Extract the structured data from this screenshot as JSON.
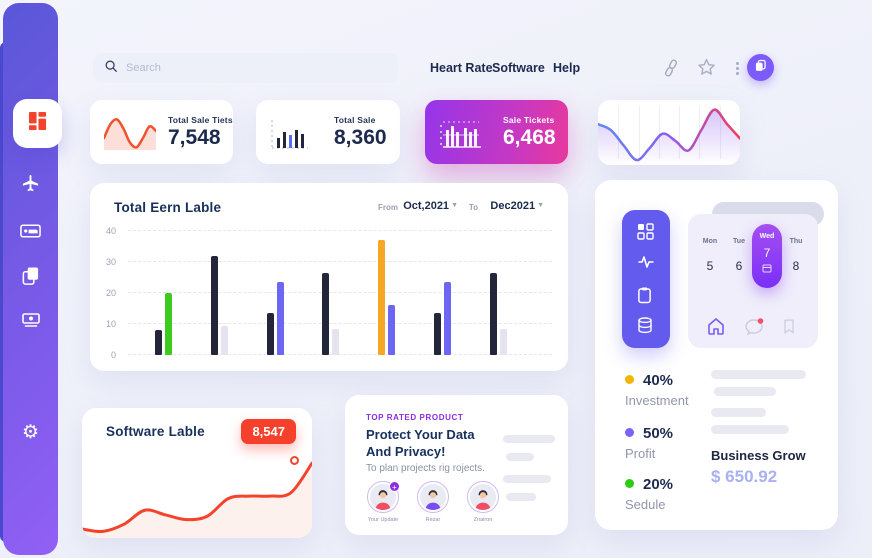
{
  "header": {
    "search": {
      "placeholder": "Search"
    },
    "nav": [
      {
        "label": "Heart Rate"
      },
      {
        "label": "Software"
      },
      {
        "label": "Help"
      }
    ],
    "action_icons": [
      "link-icon",
      "star-icon",
      "kebab-menu-icon",
      "pages-avatar-button"
    ]
  },
  "sidebar": {
    "items": [
      {
        "id": "dashboard",
        "icon": "dashboard-grid-icon",
        "active": true
      },
      {
        "id": "travel",
        "icon": "airplane-icon"
      },
      {
        "id": "hotel",
        "icon": "bed-icon"
      },
      {
        "id": "documents",
        "icon": "copy-icon"
      },
      {
        "id": "payments",
        "icon": "cash-icon"
      },
      {
        "id": "settings",
        "icon": "gear-icon"
      }
    ]
  },
  "stat_cards": [
    {
      "label": "Total Sale Tiets",
      "value": "7,548",
      "visual": "red-wave-sparkline"
    },
    {
      "label": "Total Sale",
      "value": "8,360",
      "visual": "mini-bar-icon"
    },
    {
      "label": "Sale Tickets",
      "value": "6,468",
      "visual": "white-bar-icon",
      "bg": "purple-pink-gradient"
    },
    {
      "visual": "gradient-line-sparkline"
    }
  ],
  "main_chart": {
    "title": "Total Eern Lable",
    "from_label": "From",
    "from_value": "Oct,2021",
    "to_label": "To",
    "to_value": "Dec2021"
  },
  "chart_data": [
    {
      "id": "total-eern-lable",
      "type": "bar",
      "title": "Total Eern Lable",
      "categories": [
        "",
        "",
        "",
        "",
        "",
        "",
        ""
      ],
      "series": [
        {
          "name": "primary",
          "values": [
            8,
            32,
            13.5,
            26.5,
            37,
            13.5,
            26.5
          ],
          "colors": [
            "#23263a",
            "#23263a",
            "#23263a",
            "#23263a",
            "#f6a723",
            "#23263a",
            "#23263a"
          ]
        },
        {
          "name": "secondary",
          "values": [
            20,
            9.5,
            23.5,
            8.5,
            16,
            23.5,
            8.5
          ],
          "colors": [
            "#3ecb20",
            "#e5e3f0",
            "#6d66f2",
            "#e5e3f0",
            "#6d66f2",
            "#6d66f2",
            "#e5e3f0"
          ]
        }
      ],
      "ylim": [
        0,
        40
      ],
      "yticks": [
        0,
        10,
        20,
        30,
        40
      ],
      "grid": "horizontal-dashed",
      "legend": "none",
      "xlabel": "",
      "ylabel": ""
    },
    {
      "id": "total-sale-tiets-spark",
      "type": "line",
      "values": [
        5,
        8,
        9,
        7,
        4,
        3,
        5,
        7.5,
        6.5
      ],
      "color": "#f4502e",
      "fill_opacity": 0.35
    },
    {
      "id": "header-gradient-spark",
      "type": "line",
      "values": [
        60,
        55,
        42,
        30,
        40,
        52,
        46,
        38,
        55,
        72,
        60,
        48
      ],
      "gradient": [
        "#5b8def",
        "#8f5cf0",
        "#ef3d5b"
      ],
      "gridlines": 6
    },
    {
      "id": "software-lable-line",
      "type": "line",
      "values": [
        22,
        20,
        26,
        38,
        34,
        30,
        33,
        48,
        50,
        50,
        53,
        78
      ],
      "color": "#f4432c",
      "fill": "#fdeeea",
      "endpoint_marker": true
    }
  ],
  "right_panel": {
    "toolbar_icons": [
      "grid-icon",
      "pulse-icon",
      "clipboard-icon",
      "database-icon"
    ],
    "calendar": {
      "days": [
        {
          "name": "Mon",
          "date": "5",
          "selected": false
        },
        {
          "name": "Tue",
          "date": "6",
          "selected": false
        },
        {
          "name": "Wed",
          "date": "7",
          "selected": true
        },
        {
          "name": "Thu",
          "date": "8",
          "selected": false
        }
      ],
      "footer_icons": [
        "home-icon",
        "chat-icon",
        "bookmark-icon"
      ],
      "chat_has_badge": true
    },
    "legend": [
      {
        "pct": "40%",
        "label": "Investment",
        "color": "#f2b705"
      },
      {
        "pct": "50%",
        "label": "Profit",
        "color": "#7b61ff"
      },
      {
        "pct": "20%",
        "label": "Sedule",
        "color": "#2ecc11"
      }
    ],
    "business": {
      "title": "Business Grow",
      "amount": "$ 650.92"
    }
  },
  "software_card": {
    "title": "Software Lable",
    "badge": "8,547"
  },
  "product_card": {
    "eyebrow": "TOP RATED PRODUCT",
    "heading": "Protect Your Data And Privacy!",
    "subtext": "To plan projects rig rojects.",
    "avatars": [
      {
        "name": "Your Update"
      },
      {
        "name": "Rezar"
      },
      {
        "name": "Znairon"
      }
    ]
  },
  "colors": {
    "accent_purple": "#6c5cf0",
    "accent_red": "#f4432c",
    "navy": "#1d2a4e",
    "gradient_card": [
      "#9535ea",
      "#e8399d"
    ],
    "sidebar_gradient": [
      "#5a57d8",
      "#9160f4"
    ]
  }
}
